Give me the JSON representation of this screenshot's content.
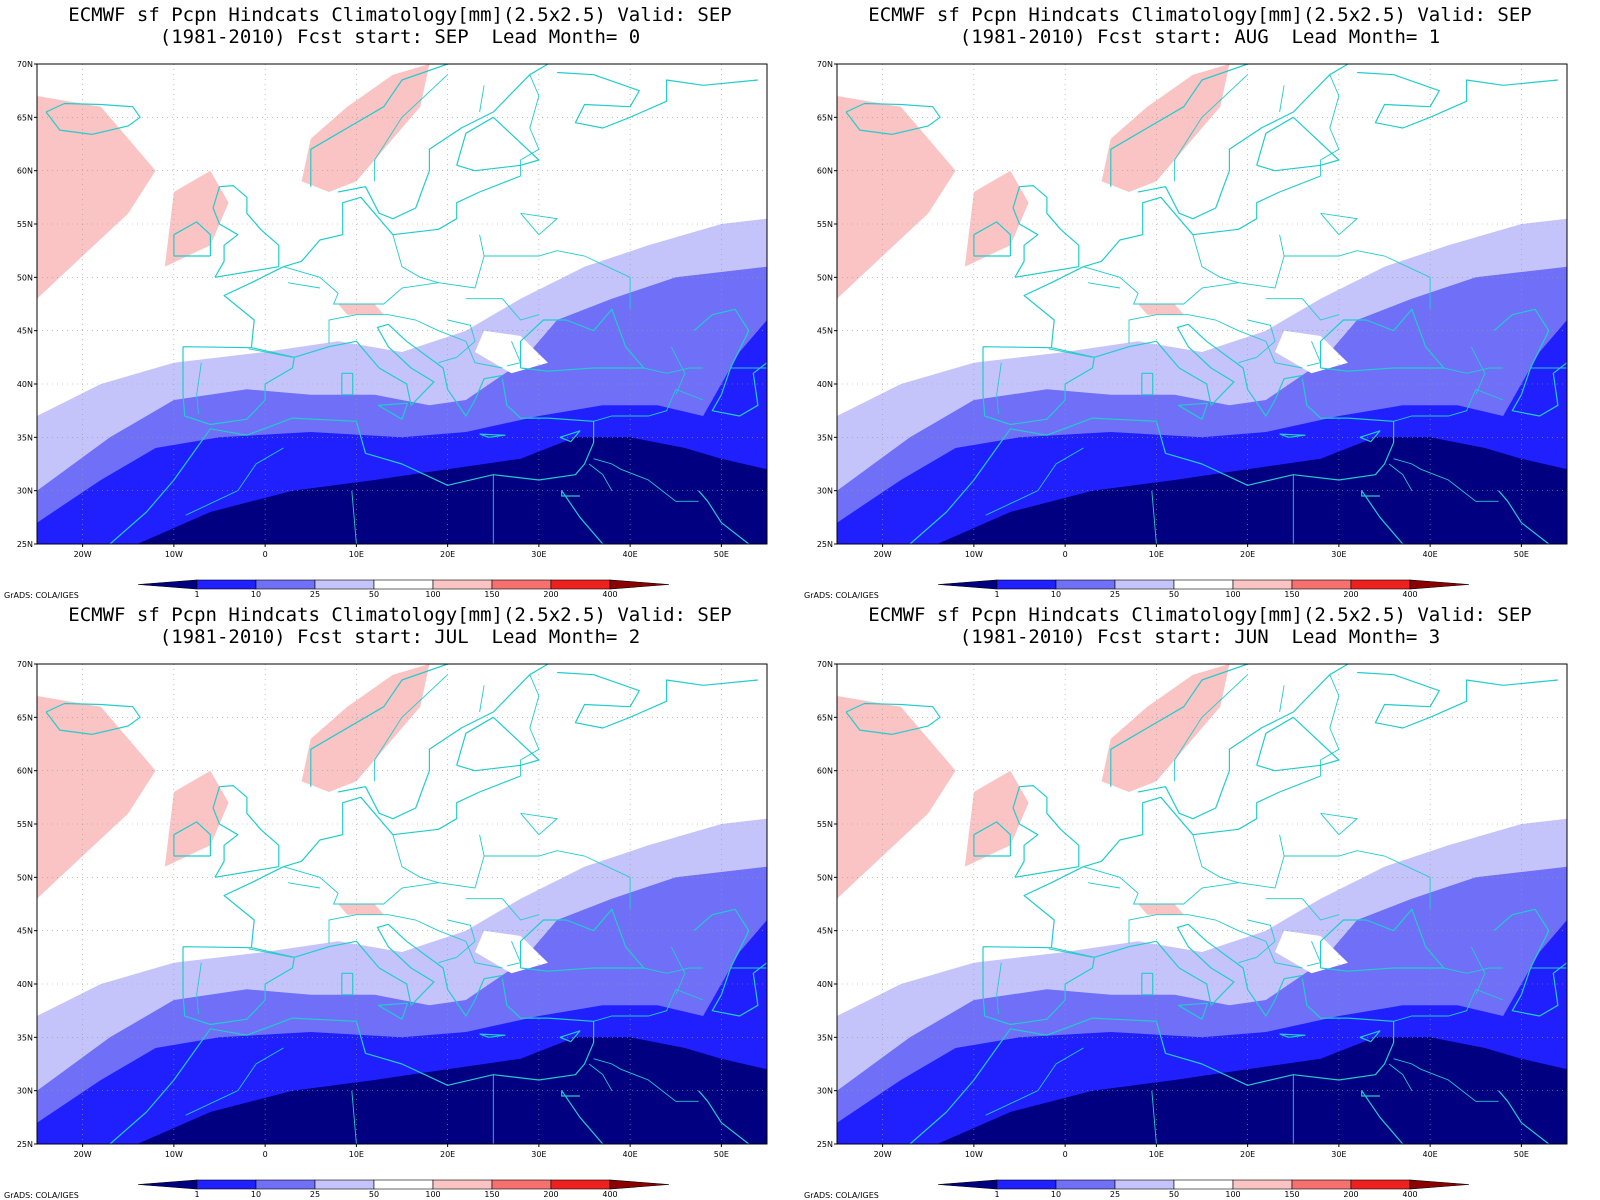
{
  "app": {
    "software_credit": "GrADS: COLA/IGES"
  },
  "map_common": {
    "title_line1": "ECMWF sf Pcpn Hindcats Climatology[mm](2.5x2.5) Valid: SEP",
    "lat_labels": [
      "70N",
      "65N",
      "60N",
      "55N",
      "50N",
      "45N",
      "40N",
      "35N",
      "30N",
      "25N"
    ],
    "lon_labels": [
      "20W",
      "10W",
      "0",
      "10E",
      "20E",
      "30E",
      "40E",
      "50E"
    ],
    "colorbar_labels": [
      "1",
      "10",
      "25",
      "50",
      "100",
      "150",
      "200",
      "400"
    ],
    "colorbar_colors": [
      "#000080",
      "#2020ff",
      "#6f6ff7",
      "#c4c4fb",
      "#ffffff",
      "#fbc4c4",
      "#f77070",
      "#ef2020",
      "#8c0000"
    ],
    "coastline_color": "#22cccc"
  },
  "panels": [
    {
      "title_line2": "(1981-2010) Fcst start: SEP  Lead Month= 0"
    },
    {
      "title_line2": "(1981-2010) Fcst start: AUG  Lead Month= 1"
    },
    {
      "title_line2": "(1981-2010) Fcst start: JUL  Lead Month= 2"
    },
    {
      "title_line2": "(1981-2010) Fcst start: JUN  Lead Month= 3"
    }
  ]
}
